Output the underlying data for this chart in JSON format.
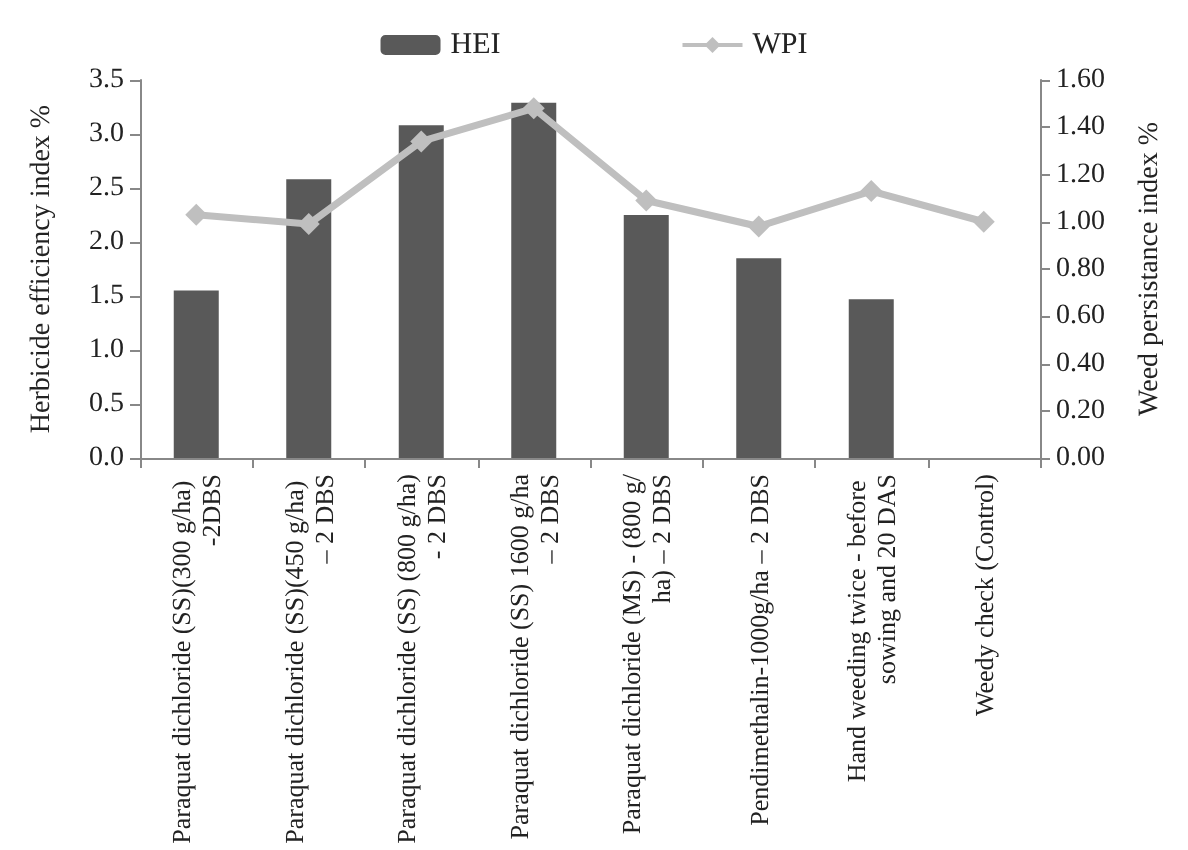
{
  "chart_data": {
    "type": "bar",
    "categories": [
      "Paraquat dichloride (SS)(300 g/ha)  -2DBS",
      "Paraquat dichloride (SS)(450 g/ha) – 2 DBS",
      "Paraquat dichloride (SS) (800 g/ha) - 2 DBS",
      "Paraquat dichloride (SS) 1600 g/ha – 2 DBS",
      "Paraquat dichloride (MS) - (800 g/ha) – 2 DBS",
      "Pendimethalin-1000g/ha – 2 DBS",
      "Hand weeding twice - before sowing and 20 DAS",
      "Weedy check (Control)"
    ],
    "ylabel": "Herbicide efficiency index %",
    "y2label": "Weed persistance index %",
    "series": [
      {
        "name": "HEI",
        "color": "#595959",
        "values": [
          1.55,
          2.58,
          3.08,
          3.29,
          2.25,
          1.85,
          1.47,
          0
        ]
      },
      {
        "name": "WPI",
        "type": "line",
        "axis": "y2",
        "color": "#bfbfbf",
        "marker": "diamond",
        "values": [
          1.03,
          0.99,
          1.34,
          1.48,
          1.09,
          0.98,
          1.13,
          1.0
        ]
      }
    ],
    "ylim": [
      0,
      3.5
    ],
    "yticks": [
      {
        "value": 0,
        "label": "0.0"
      },
      {
        "value": 0.5,
        "label": "0.5"
      },
      {
        "value": 1,
        "label": "1.0"
      },
      {
        "value": 1.5,
        "label": "1.5"
      },
      {
        "value": 2,
        "label": "2.0"
      },
      {
        "value": 2.5,
        "label": "2.5"
      },
      {
        "value": 3,
        "label": "3.0"
      },
      {
        "value": 3.5,
        "label": "3.5"
      }
    ],
    "y2lim": [
      0,
      1.6
    ],
    "y2ticks": [
      {
        "value": 0,
        "label": "0.00"
      },
      {
        "value": 0.2,
        "label": "0.20"
      },
      {
        "value": 0.4,
        "label": "0.40"
      },
      {
        "value": 0.6,
        "label": "0.60"
      },
      {
        "value": 0.8,
        "label": "0.80"
      },
      {
        "value": 1,
        "label": "1.00"
      },
      {
        "value": 1.2,
        "label": "1.20"
      },
      {
        "value": 1.4,
        "label": "1.40"
      },
      {
        "value": 1.6,
        "label": "1.60"
      }
    ],
    "legend": "top",
    "grid": false
  }
}
